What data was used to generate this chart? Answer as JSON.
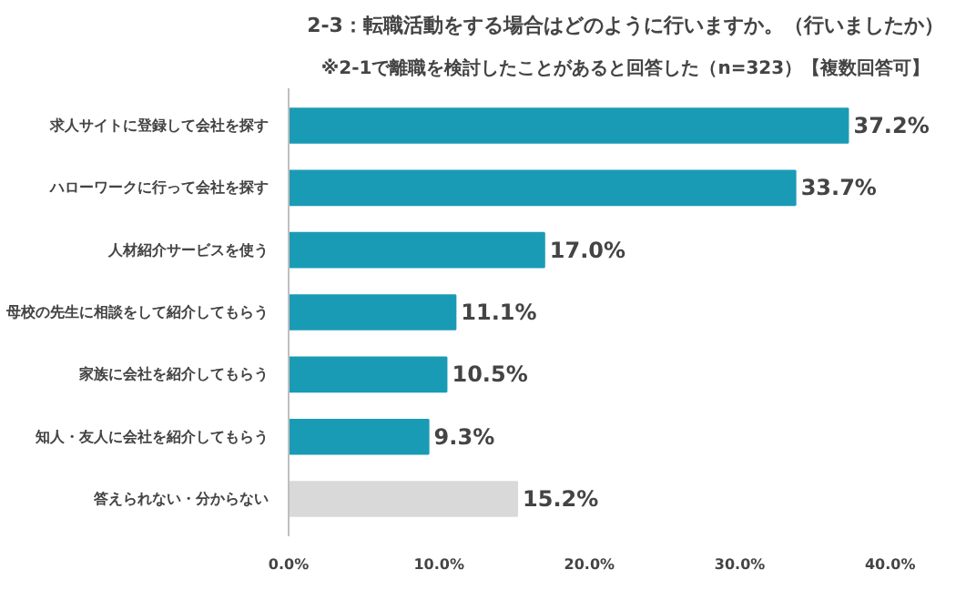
{
  "chart_data": {
    "type": "bar",
    "orientation": "horizontal",
    "title": "2-3：転職活動をする場合はどのように行いますか。（行いましたか）",
    "subtitle": "※2-1で離職を検討したことがあると回答した（n=323）【複数回答可】",
    "categories": [
      "求人サイトに登録して会社を探す",
      "ハローワークに行って会社を探す",
      "人材紹介サービスを使う",
      "母校の先生に相談をして紹介してもらう",
      "家族に会社を紹介してもらう",
      "知人・友人に会社を紹介してもらう",
      "答えられない・分からない"
    ],
    "values": [
      37.2,
      33.7,
      17.0,
      11.1,
      10.5,
      9.3,
      15.2
    ],
    "value_labels": [
      "37.2%",
      "33.7%",
      "17.0%",
      "11.1%",
      "10.5%",
      "9.3%",
      "15.2%"
    ],
    "colors": [
      "#1a9bb5",
      "#1a9bb5",
      "#1a9bb5",
      "#1a9bb5",
      "#1a9bb5",
      "#1a9bb5",
      "#d9d9d9"
    ],
    "xlim": [
      0,
      40
    ],
    "xticks": [
      {
        "value": 0,
        "label": "0.0%"
      },
      {
        "value": 10,
        "label": "10.0%"
      },
      {
        "value": 20,
        "label": "20.0%"
      },
      {
        "value": 30,
        "label": "30.0%"
      },
      {
        "value": 40,
        "label": "40.0%"
      }
    ]
  }
}
